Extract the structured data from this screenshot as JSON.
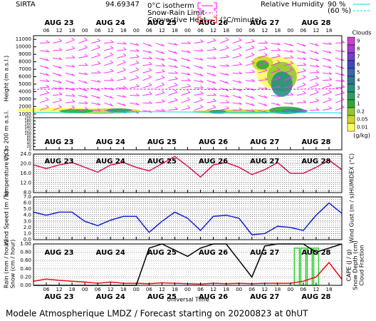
{
  "header": {
    "station": "SIRTA",
    "coords": "94.69347",
    "x_label": "Universal Time",
    "footer": "Modele Atmospherique LMDZ / Forecast starting on 20200823 at 0hUT"
  },
  "days": [
    {
      "value": 12,
      "label": "AUG 23"
    },
    {
      "value": 36,
      "label": "AUG 24"
    },
    {
      "value": 60,
      "label": "AUG 25"
    },
    {
      "value": 84,
      "label": "AUG 26"
    },
    {
      "value": 108,
      "label": "AUG 27"
    },
    {
      "value": 132,
      "label": "AUG 28"
    }
  ],
  "xlim": [
    0,
    144
  ],
  "xticks": [
    {
      "value": 6,
      "label": "06"
    },
    {
      "value": 12,
      "label": "12"
    },
    {
      "value": 18,
      "label": "18"
    },
    {
      "value": 24,
      "label": "00"
    },
    {
      "value": 30,
      "label": "06"
    },
    {
      "value": 36,
      "label": "12"
    },
    {
      "value": 42,
      "label": "18"
    },
    {
      "value": 48,
      "label": "00"
    },
    {
      "value": 54,
      "label": "06"
    },
    {
      "value": 60,
      "label": "12"
    },
    {
      "value": 66,
      "label": "18"
    },
    {
      "value": 72,
      "label": "00"
    },
    {
      "value": 78,
      "label": "06"
    },
    {
      "value": 84,
      "label": "12"
    },
    {
      "value": 90,
      "label": "18"
    },
    {
      "value": 96,
      "label": "00"
    },
    {
      "value": 102,
      "label": "06"
    },
    {
      "value": 108,
      "label": "12"
    },
    {
      "value": 114,
      "label": "18"
    },
    {
      "value": 120,
      "label": "00"
    },
    {
      "value": 126,
      "label": "06"
    },
    {
      "value": 132,
      "label": "12"
    },
    {
      "value": 138,
      "label": "18"
    }
  ],
  "chart_data": [
    {
      "type": "contour",
      "y_label": "Height (m a.s.l.)",
      "y_label_low": "Up to 200 m a.s.l.",
      "ylim": [
        500,
        11500
      ],
      "yticks": [
        1000,
        2000,
        3000,
        4000,
        5000,
        6000,
        7000,
        8000,
        9000,
        10000,
        11000
      ],
      "low_ylim": [
        0,
        200
      ],
      "low_yticks": [
        0,
        20,
        40,
        60,
        80,
        100,
        120,
        140,
        160,
        180,
        200
      ],
      "legend": [
        {
          "name": "0°C isotherm",
          "color": "#ff00ff"
        },
        {
          "name": "Snow-Rain Limit",
          "color": "#ff00ff"
        },
        {
          "name": "Convective Heat.",
          "color": "#ff0000",
          "unit": "(°C/minute)"
        }
      ],
      "humidity": {
        "name": "Relative Humidity",
        "color": "#00d8e8",
        "levels": [
          "90 %",
          "(60 %)"
        ]
      },
      "colorbar": {
        "title": "Clouds",
        "unit": "(g/kg)",
        "labels": [
          "9",
          "8",
          "7",
          "6",
          "5",
          "4",
          "3",
          "2",
          "1",
          "0.2",
          "0.05",
          "0.01"
        ],
        "colors": [
          "#d040d0",
          "#a040d0",
          "#7040c8",
          "#4048c0",
          "#3868b0",
          "#307890",
          "#289080",
          "#28a060",
          "#30a838",
          "#90c830",
          "#d0d820",
          "#ffff60"
        ]
      }
    },
    {
      "type": "line",
      "y_label": "Temperature (°C)",
      "y2_label": "HUMIDEX (°C)",
      "ylim": [
        8,
        24
      ],
      "yticks": [
        {
          "value": 8,
          "label": "8.0"
        },
        {
          "value": 12,
          "label": "12.0"
        },
        {
          "value": 16,
          "label": "16.0"
        },
        {
          "value": 20,
          "label": "20.0"
        },
        {
          "value": 24,
          "label": "24.0"
        }
      ],
      "series": [
        {
          "name": "Temperature",
          "color": "#e0105a",
          "x": [
            0,
            6,
            12,
            18,
            24,
            30,
            36,
            42,
            48,
            54,
            60,
            66,
            72,
            78,
            84,
            90,
            96,
            102,
            108,
            114,
            120,
            126,
            132,
            138,
            144
          ],
          "values": [
            19.5,
            18,
            19.5,
            20.5,
            18.5,
            16.5,
            19.5,
            20.5,
            18.5,
            17,
            20,
            23,
            19,
            14.5,
            19.5,
            20.5,
            18.5,
            15.5,
            17.5,
            20.5,
            16,
            16,
            18.5,
            21.5,
            17.5
          ]
        }
      ]
    },
    {
      "type": "line",
      "y_label": "Wind Speed (m / s)",
      "y2_label": "Wind Gust (m / s)",
      "ylim": [
        0,
        7
      ],
      "yticks": [
        {
          "value": 0,
          "label": "0.0"
        },
        {
          "value": 1,
          "label": "1.0"
        },
        {
          "value": 2,
          "label": "2.0"
        },
        {
          "value": 3,
          "label": "3.0"
        },
        {
          "value": 4,
          "label": "4.0"
        },
        {
          "value": 5,
          "label": "5.0"
        },
        {
          "value": 6,
          "label": "6.0"
        },
        {
          "value": 7,
          "label": "7.0"
        }
      ],
      "series": [
        {
          "name": "Wind Speed",
          "color": "#1020d0",
          "x": [
            0,
            6,
            12,
            18,
            24,
            30,
            36,
            42,
            48,
            54,
            60,
            66,
            72,
            78,
            84,
            90,
            96,
            102,
            108,
            114,
            120,
            126,
            132,
            138,
            144
          ],
          "values": [
            4.5,
            4,
            4.5,
            4.5,
            3,
            2.3,
            3.2,
            3.8,
            3.8,
            1.2,
            3,
            4.5,
            3.5,
            1.5,
            3.8,
            4,
            3.5,
            0.8,
            1,
            2.2,
            2,
            1.5,
            4,
            6,
            4.3
          ]
        }
      ]
    },
    {
      "type": "mixed",
      "y_label": "Rain (mm / hour)",
      "y_label2": "Snow (cm / hour)",
      "y2_labels": [
        "CAPE (J / g)",
        "Snow Depth (cm)",
        "Cloud Fraction"
      ],
      "ylim": [
        0,
        1
      ],
      "yticks": [
        {
          "value": 0,
          "label": "0.00"
        },
        {
          "value": 0.2,
          "label": "0.20"
        },
        {
          "value": 0.4,
          "label": "0.40"
        },
        {
          "value": 0.6,
          "label": "0.60"
        },
        {
          "value": 0.8,
          "label": "0.80"
        },
        {
          "value": 1,
          "label": "1.00"
        }
      ],
      "series": [
        {
          "name": "Rain (mm / hour)",
          "kind": "bar",
          "color": "#30d030",
          "x": [
            123,
            126,
            129,
            132
          ],
          "values": [
            0.9,
            0.9,
            0.9,
            0.9
          ]
        },
        {
          "name": "CAPE (J / g)",
          "kind": "line",
          "color": "#e01010",
          "x": [
            0,
            6,
            12,
            18,
            24,
            30,
            36,
            42,
            48,
            54,
            60,
            66,
            72,
            78,
            84,
            90,
            96,
            102,
            108,
            114,
            120,
            126,
            132,
            138,
            144
          ],
          "values": [
            0.1,
            0.15,
            0.12,
            0.1,
            0.08,
            0.05,
            0.08,
            0.05,
            0.05,
            0.04,
            0.06,
            0.05,
            0.04,
            0.03,
            0.05,
            0.04,
            0.05,
            0.04,
            0.05,
            0.05,
            0.05,
            0.1,
            0.2,
            0.55,
            0.15
          ]
        },
        {
          "name": "Cloud Fraction",
          "kind": "line",
          "color": "#000000",
          "x": [
            0,
            6,
            12,
            18,
            24,
            30,
            36,
            42,
            48,
            54,
            60,
            66,
            72,
            78,
            84,
            90,
            96,
            102,
            108,
            114,
            120,
            126,
            132,
            138,
            144
          ],
          "values": [
            0,
            0,
            0,
            0,
            0,
            0,
            0,
            0,
            0,
            0.9,
            1,
            0.85,
            0.7,
            0.9,
            1,
            1,
            0.6,
            0.2,
            0.95,
            1,
            1,
            1,
            0.8,
            0.9,
            1
          ]
        }
      ]
    }
  ]
}
